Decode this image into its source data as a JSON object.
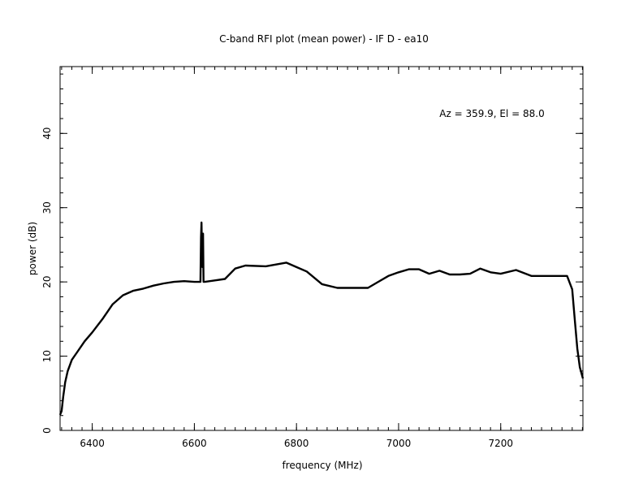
{
  "chart_data": {
    "type": "line",
    "title": "C-band RFI plot (mean power) - IF D - ea10",
    "xlabel": "frequency (MHz)",
    "ylabel": "power (dB)",
    "annotation": "Az = 359.9, El = 88.0",
    "xlim": [
      6337,
      7361
    ],
    "ylim": [
      0,
      49
    ],
    "x_ticks": [
      6400,
      6600,
      6800,
      7000,
      7200
    ],
    "x_tick_labels": [
      "6400",
      "6600",
      "6800",
      "7000",
      "7200"
    ],
    "y_ticks": [
      0,
      10,
      20,
      30,
      40
    ],
    "y_tick_labels": [
      "0",
      "10",
      "20",
      "30",
      "40"
    ],
    "grid": false,
    "series": [
      {
        "color": "#000000",
        "x": [
          6337,
          6340,
          6343,
          6347,
          6352,
          6360,
          6370,
          6385,
          6400,
          6420,
          6440,
          6460,
          6480,
          6500,
          6520,
          6540,
          6560,
          6580,
          6600,
          6612,
          6613,
          6614,
          6615,
          6616,
          6617,
          6618,
          6620,
          6640,
          6660,
          6680,
          6700,
          6740,
          6780,
          6800,
          6820,
          6850,
          6880,
          6910,
          6940,
          6960,
          6980,
          7000,
          7020,
          7040,
          7060,
          7080,
          7100,
          7120,
          7140,
          7160,
          7180,
          7200,
          7230,
          7260,
          7300,
          7330,
          7340,
          7345,
          7350,
          7355,
          7361
        ],
        "values": [
          2.1,
          2.6,
          4.5,
          6.5,
          8.0,
          9.5,
          10.5,
          12.0,
          13.2,
          15.0,
          17.0,
          18.2,
          18.8,
          19.1,
          19.5,
          19.8,
          20.0,
          20.1,
          20.0,
          20.0,
          26.0,
          28.0,
          24.0,
          22.0,
          26.5,
          20.0,
          20.0,
          20.2,
          20.4,
          21.8,
          22.2,
          22.1,
          22.6,
          22.0,
          21.4,
          19.7,
          19.2,
          19.2,
          19.2,
          20.0,
          20.8,
          21.3,
          21.7,
          21.7,
          21.1,
          21.5,
          21.0,
          21.0,
          21.1,
          21.8,
          21.3,
          21.1,
          21.6,
          20.8,
          20.8,
          20.8,
          19.0,
          15.0,
          11.0,
          8.5,
          7.0
        ]
      }
    ]
  }
}
